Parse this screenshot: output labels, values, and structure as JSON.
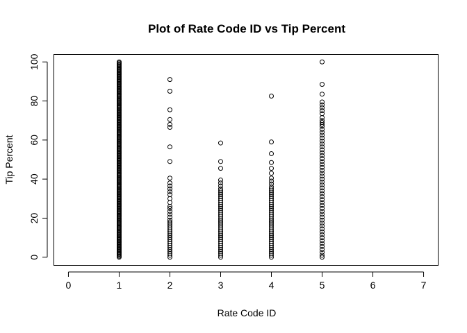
{
  "chart_data": {
    "type": "scatter",
    "title": "Plot of Rate Code ID vs Tip Percent",
    "xlabel": "Rate Code ID",
    "ylabel": "Tip Percent",
    "xlim": [
      -0.28,
      7.28
    ],
    "ylim": [
      -4,
      104
    ],
    "x_ticks": [
      0,
      1,
      2,
      3,
      4,
      5,
      6,
      7
    ],
    "y_ticks": [
      0,
      20,
      40,
      60,
      80,
      100
    ],
    "marker": "open-circle",
    "grid": false,
    "legend": "none",
    "points": [
      {
        "x": 1,
        "y_range": [
          0,
          100
        ],
        "dense": true
      },
      {
        "x": 2,
        "y": [
          91,
          85,
          75.5,
          70.5,
          68,
          66.5,
          56.5,
          49,
          40.5,
          38,
          36.5,
          35,
          33.5,
          32,
          30,
          28,
          26,
          25,
          23.5,
          22,
          20.5,
          19,
          18,
          17,
          16,
          15,
          14,
          13,
          12,
          11,
          10,
          9,
          8,
          7,
          6,
          5,
          4,
          3,
          2,
          1,
          0
        ]
      },
      {
        "x": 3,
        "y": [
          58.5,
          49,
          45.5,
          39.5,
          38,
          36.5,
          35,
          34,
          33,
          32,
          31,
          30,
          29,
          28,
          27,
          26,
          25,
          24,
          23,
          22,
          21,
          20,
          19,
          18,
          17,
          16,
          15,
          14,
          13,
          12,
          11,
          10,
          9,
          8,
          7,
          6,
          5,
          4,
          3,
          2,
          1,
          0
        ]
      },
      {
        "x": 4,
        "y": [
          82.5,
          59,
          53,
          48.5,
          45.5,
          43,
          40.5,
          39,
          37.5,
          36,
          35,
          34,
          33,
          32,
          31,
          30,
          29,
          28,
          27,
          26,
          25,
          24,
          23,
          22,
          21,
          20,
          19,
          18,
          17,
          16,
          15,
          14,
          13,
          12,
          11,
          10,
          9,
          8,
          7,
          6,
          5,
          4,
          3,
          2,
          1,
          0
        ]
      },
      {
        "x": 5,
        "y": [
          100,
          88.5,
          83.5,
          79.5,
          78,
          76.5,
          75,
          73.5,
          71.5,
          70,
          69,
          68,
          67,
          65.5,
          64,
          62.5,
          61,
          59.5,
          58,
          56.5,
          55,
          53.5,
          52,
          50.5,
          49,
          47.5,
          46,
          44.5,
          43,
          41.5,
          40,
          38.5,
          37,
          35.5,
          34,
          32.5,
          31,
          29.5,
          28,
          26.5,
          25,
          23.5,
          22,
          20.5,
          19,
          17.5,
          16,
          14.5,
          13,
          11.5,
          10,
          8.5,
          7,
          5.5,
          4,
          2.5,
          1,
          0
        ]
      }
    ]
  }
}
